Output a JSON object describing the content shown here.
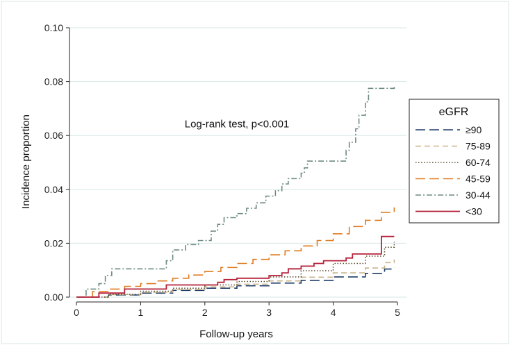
{
  "chart_data": {
    "type": "line",
    "xlabel": "Follow-up years",
    "ylabel": "Incidence proportion",
    "xlim": [
      0,
      5
    ],
    "ylim": [
      0,
      0.1
    ],
    "xticks": [
      0,
      1,
      2,
      3,
      4,
      5
    ],
    "xtick_labels": [
      "0",
      "1",
      "2",
      "3",
      "4",
      "5"
    ],
    "yticks": [
      0,
      0.02,
      0.04,
      0.06,
      0.08,
      0.1
    ],
    "ytick_labels": [
      "0.00",
      "0.02",
      "0.04",
      "0.06",
      "0.08",
      "0.10"
    ],
    "grid": "horizontal",
    "annotation": {
      "text": "Log-rank test, p<0.001",
      "x": 2.5,
      "y": 0.063
    },
    "legend": {
      "title": "eGFR",
      "position": "right"
    },
    "series": [
      {
        "name": "≥90",
        "color": "#1f3d6b",
        "dash": "long-dash",
        "x": [
          0,
          0.5,
          1,
          1.5,
          2,
          2.5,
          3,
          3.5,
          4,
          4.5,
          4.8,
          4.95
        ],
        "y": [
          0,
          0.0008,
          0.0015,
          0.0025,
          0.0033,
          0.0042,
          0.0052,
          0.0062,
          0.0075,
          0.0088,
          0.0104,
          0.011
        ]
      },
      {
        "name": "75-89",
        "color": "#c8b48a",
        "dash": "dash",
        "x": [
          0,
          0.5,
          1,
          1.5,
          2,
          2.5,
          3,
          3.5,
          4,
          4.5,
          4.8,
          4.95
        ],
        "y": [
          0,
          0.0009,
          0.0018,
          0.0028,
          0.0038,
          0.0048,
          0.006,
          0.0074,
          0.009,
          0.0108,
          0.0128,
          0.014
        ]
      },
      {
        "name": "60-74",
        "color": "#5a4a2a",
        "dash": "dot",
        "x": [
          0,
          0.5,
          1,
          1.5,
          2,
          2.5,
          3,
          3.5,
          4,
          4.5,
          4.8,
          4.95
        ],
        "y": [
          0,
          0.001,
          0.0022,
          0.0033,
          0.0045,
          0.0058,
          0.0075,
          0.0098,
          0.0125,
          0.0152,
          0.0185,
          0.0205
        ]
      },
      {
        "name": "45-59",
        "color": "#e07b1f",
        "dash": "long-dash",
        "x": [
          0,
          0.25,
          0.5,
          0.75,
          1,
          1.25,
          1.5,
          1.75,
          2,
          2.25,
          2.5,
          2.75,
          3,
          3.25,
          3.5,
          3.75,
          4,
          4.25,
          4.5,
          4.75,
          4.95
        ],
        "y": [
          0,
          0.002,
          0.003,
          0.004,
          0.005,
          0.006,
          0.007,
          0.0082,
          0.0095,
          0.011,
          0.0125,
          0.014,
          0.0157,
          0.0172,
          0.019,
          0.021,
          0.0235,
          0.0262,
          0.0285,
          0.0315,
          0.0333
        ]
      },
      {
        "name": "30-44",
        "color": "#6e8a84",
        "dash": "dash-dot",
        "x": [
          0,
          0.15,
          0.35,
          0.45,
          0.55,
          1.3,
          1.4,
          1.5,
          1.7,
          1.9,
          2.1,
          2.2,
          2.3,
          2.5,
          2.65,
          2.8,
          2.95,
          3.1,
          3.2,
          3.3,
          3.5,
          3.55,
          3.6,
          3.8,
          3.9,
          4.15,
          4.2,
          4.25,
          4.35,
          4.4,
          4.5,
          4.55,
          4.95
        ],
        "y": [
          0,
          0.003,
          0.005,
          0.008,
          0.0105,
          0.0105,
          0.0135,
          0.0175,
          0.0195,
          0.021,
          0.0245,
          0.027,
          0.0295,
          0.031,
          0.033,
          0.035,
          0.0375,
          0.0395,
          0.042,
          0.044,
          0.046,
          0.048,
          0.0505,
          0.0505,
          0.0505,
          0.0505,
          0.0545,
          0.0575,
          0.0625,
          0.0675,
          0.0725,
          0.0775,
          0.078
        ]
      },
      {
        "name": "<30",
        "color": "#b5213a",
        "dash": "solid",
        "x": [
          0,
          0.3,
          0.35,
          0.7,
          0.75,
          1.3,
          1.4,
          1.5,
          2.0,
          2.2,
          2.3,
          2.5,
          3.0,
          3.2,
          3.3,
          3.5,
          3.7,
          3.85,
          4.2,
          4.3,
          4.7,
          4.75,
          4.95
        ],
        "y": [
          0,
          0,
          0.0015,
          0.0015,
          0.003,
          0.003,
          0.0045,
          0.0045,
          0.0045,
          0.0055,
          0.0065,
          0.007,
          0.008,
          0.009,
          0.0105,
          0.0115,
          0.0125,
          0.0135,
          0.0145,
          0.016,
          0.016,
          0.0225,
          0.0225
        ]
      }
    ]
  }
}
